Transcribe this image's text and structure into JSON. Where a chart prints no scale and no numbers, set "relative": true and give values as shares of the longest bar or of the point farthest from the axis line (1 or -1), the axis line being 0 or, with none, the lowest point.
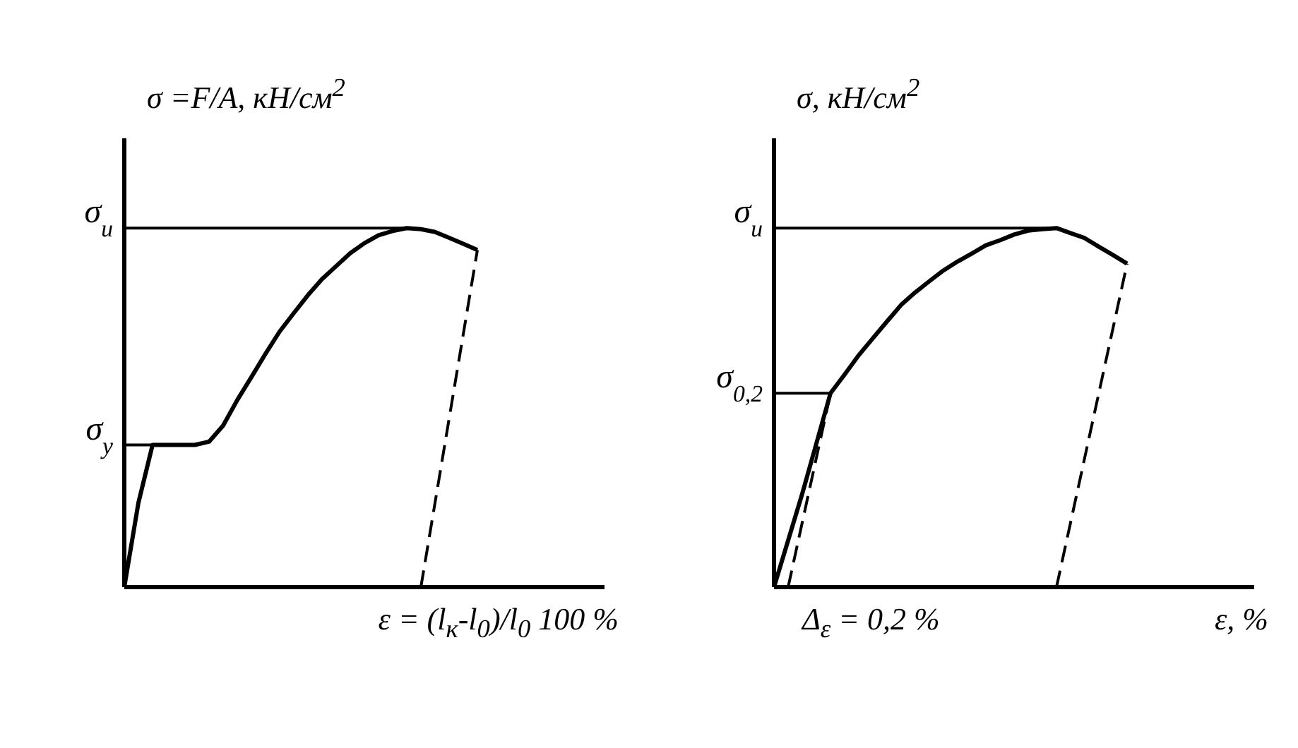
{
  "chart_data": [
    {
      "type": "line",
      "relative": true,
      "ylabel": "σ =F/A, кН/см$^{2}$",
      "xlabel": "ε = (l$_{к}$-l$_{0}$)/l$_{0}$ 100 %",
      "marker": "none",
      "grid": false,
      "categories": [
        null,
        null,
        null,
        null,
        null,
        null,
        null,
        null,
        null,
        null,
        null,
        null,
        null,
        null,
        null,
        null,
        null,
        null,
        null,
        null,
        null,
        null,
        null,
        null,
        null,
        null
      ],
      "series": [
        {
          "color": "#000000",
          "line_style": "solid",
          "values": [
            0,
            0.235,
            0.396,
            0.396,
            0.396,
            0.396,
            0.405,
            0.45,
            0.521,
            0.585,
            0.65,
            0.712,
            0.763,
            0.813,
            0.858,
            0.894,
            0.93,
            0.958,
            0.98,
            0.992,
            1,
            0.997,
            0.989,
            0.973,
            0.956,
            0.939
          ]
        },
        {
          "color": "#000000",
          "line_style": "dashed",
          "values": [
            null,
            null,
            null,
            null,
            null,
            null,
            null,
            null,
            null,
            null,
            null,
            null,
            null,
            null,
            null,
            null,
            null,
            null,
            null,
            null,
            null,
            0,
            null,
            null,
            null,
            0.939
          ]
        }
      ],
      "ref_lines": [
        {
          "axis": "y",
          "value": 0.396,
          "label": "σ$_{y}$"
        },
        {
          "axis": "y",
          "value": 1,
          "label": "σ$_{u}$"
        }
      ]
    },
    {
      "type": "line",
      "relative": true,
      "ylabel": "σ, кН/см$^{2}$",
      "xlabel": "ε, %",
      "marker": "none",
      "grid": false,
      "annotations": [
        "Δ$_{ε}$ = 0,2 %"
      ],
      "categories": [
        null,
        null,
        null,
        null,
        null,
        null,
        null,
        null,
        null,
        null,
        null,
        null,
        null,
        null,
        null,
        null,
        null,
        null,
        null,
        null,
        null,
        null,
        null,
        null,
        null,
        null
      ],
      "series": [
        {
          "color": "#000000",
          "line_style": "solid",
          "values": [
            0,
            0.13,
            0.26,
            0.4,
            0.54,
            0.592,
            0.646,
            0.693,
            0.74,
            0.786,
            0.821,
            0.852,
            0.882,
            0.907,
            0.929,
            0.952,
            0.966,
            0.982,
            0.993,
            0.997,
            1,
            0.986,
            0.972,
            0.948,
            0.925,
            0.901
          ]
        },
        {
          "color": "#000000",
          "line_style": "dashed",
          "values": [
            null,
            0,
            null,
            null,
            0.54,
            null,
            null,
            null,
            null,
            null,
            null,
            null,
            null,
            null,
            null,
            null,
            null,
            null,
            null,
            null,
            null,
            null,
            null,
            null,
            null,
            null
          ]
        },
        {
          "color": "#000000",
          "line_style": "dashed",
          "values": [
            null,
            null,
            null,
            null,
            null,
            null,
            null,
            null,
            null,
            null,
            null,
            null,
            null,
            null,
            null,
            null,
            null,
            null,
            null,
            null,
            0,
            null,
            null,
            null,
            null,
            0.901
          ]
        }
      ],
      "ref_lines": [
        {
          "axis": "y",
          "value": 0.54,
          "label": "σ$_{0,2}$"
        },
        {
          "axis": "y",
          "value": 1,
          "label": "σ$_{u}$"
        }
      ]
    }
  ]
}
